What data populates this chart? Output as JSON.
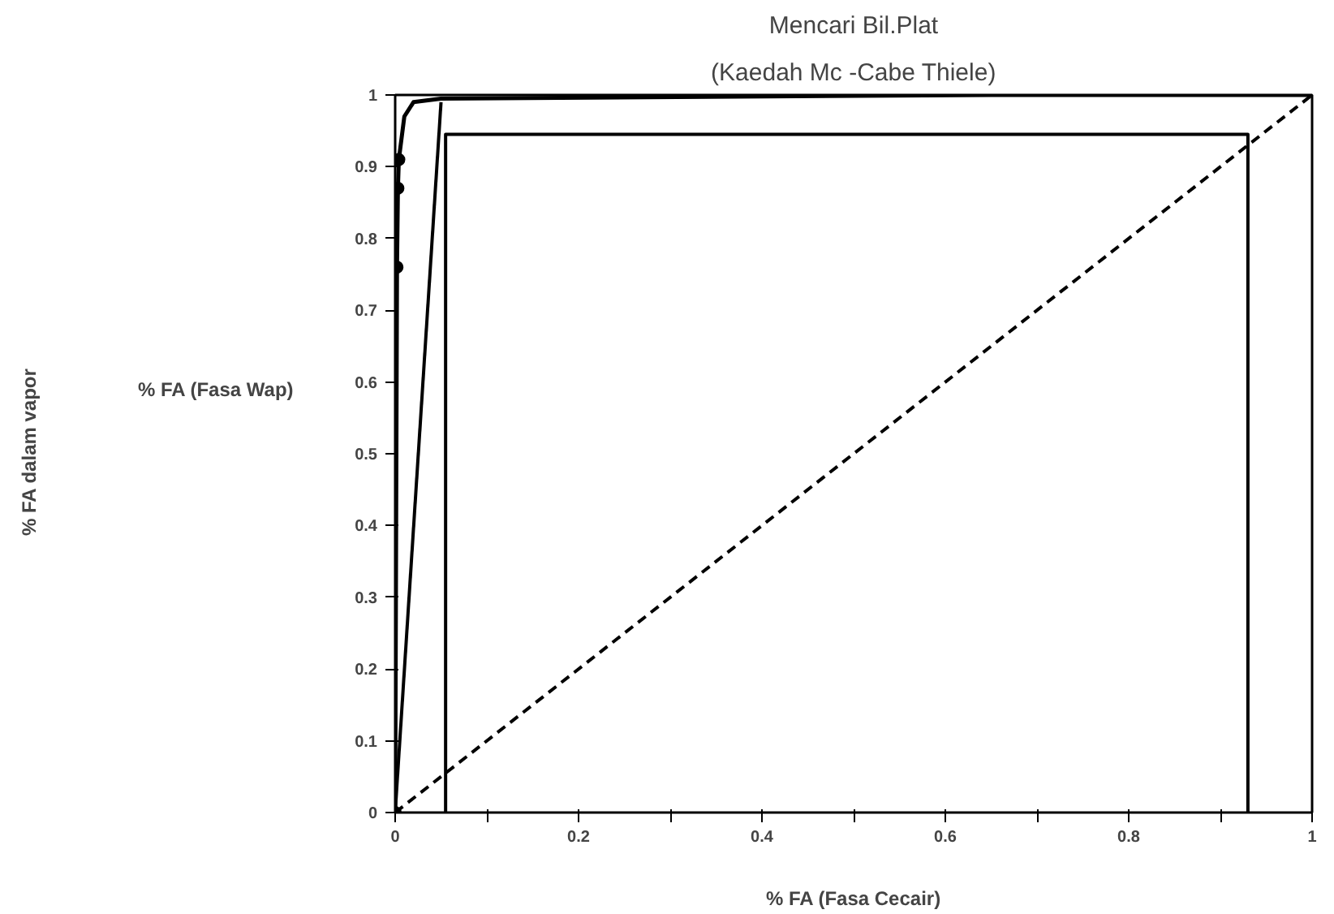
{
  "chart_data": {
    "type": "line",
    "title": "Mencari Bil.Plat",
    "subtitle": "(Kaedah Mc -Cabe Thiele)",
    "xlabel": "% FA (Fasa Cecair)",
    "annotations": [
      "% FA (Fasa Wap)",
      "% FA dalam vapor"
    ],
    "xlim": [
      0,
      1
    ],
    "ylim": [
      0,
      1
    ],
    "xticks": [
      0,
      {
        "value": 0.1,
        "label": null
      },
      0.2,
      {
        "value": 0.3,
        "label": null
      },
      0.4,
      {
        "value": 0.5,
        "label": null
      },
      0.6,
      {
        "value": 0.7,
        "label": null
      },
      0.8,
      {
        "value": 0.9,
        "label": null
      },
      1
    ],
    "yticks": [
      0,
      0.1,
      0.2,
      0.3,
      0.4,
      0.5,
      0.6,
      0.7,
      0.8,
      0.9,
      1
    ],
    "grid": false,
    "series": [
      {
        "color": "#000000",
        "x": [
          0,
          0.002,
          0.003,
          0.004,
          0.01,
          0.02,
          0.05,
          0.65,
          1
        ],
        "values": [
          0,
          0.76,
          0.87,
          0.91,
          0.97,
          0.99,
          0.995,
          1.0,
          1.0
        ]
      },
      {
        "type": "scatter",
        "color": "#000000",
        "marker": "circle",
        "x": [
          0,
          0.002,
          0.003,
          0.004
        ],
        "values": [
          0,
          0.76,
          0.87,
          0.91
        ]
      },
      {
        "color": "#000000",
        "line_style": "dashed",
        "x": [
          0,
          1
        ],
        "values": [
          0,
          1
        ]
      },
      {
        "color": "#000000",
        "x": [
          0.93,
          0.93,
          0.055,
          0.055
        ],
        "values": [
          0,
          0.945,
          0.945,
          0
        ]
      },
      {
        "color": "#000000",
        "x": [
          0,
          0.05
        ],
        "values": [
          0,
          0.99
        ]
      }
    ]
  }
}
